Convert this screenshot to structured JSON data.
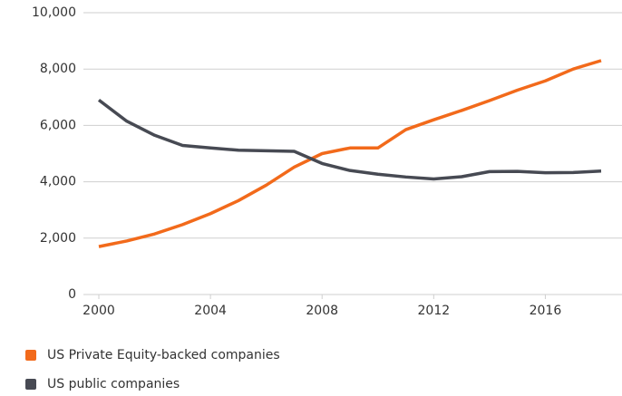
{
  "chart_data": {
    "type": "line",
    "x": [
      2000,
      2001,
      2002,
      2003,
      2004,
      2005,
      2006,
      2007,
      2008,
      2009,
      2010,
      2011,
      2012,
      2013,
      2014,
      2015,
      2016,
      2017,
      2018
    ],
    "series": [
      {
        "name": "US Private Equity-backed companies",
        "color": "#f26a1b",
        "values": [
          1700,
          1900,
          2150,
          2480,
          2870,
          3330,
          3880,
          4520,
          5000,
          5200,
          5200,
          5850,
          6200,
          6530,
          6880,
          7250,
          7580,
          8000,
          8300
        ]
      },
      {
        "name": "US public companies",
        "color": "#474a53",
        "values": [
          6900,
          6150,
          5650,
          5290,
          5200,
          5120,
          5100,
          5080,
          4650,
          4400,
          4270,
          4170,
          4100,
          4180,
          4360,
          4370,
          4320,
          4330,
          4380
        ]
      }
    ],
    "xlim": [
      2000,
      2018
    ],
    "xticks": [
      2000,
      2004,
      2008,
      2012,
      2016
    ],
    "ylim": [
      0,
      10000
    ],
    "yticks": [
      0,
      {
        "value": 2000,
        "label": "2,000"
      },
      {
        "value": 4000,
        "label": "4,000"
      },
      {
        "value": 6000,
        "label": "6,000"
      },
      {
        "value": 8000,
        "label": "8,000"
      },
      {
        "value": 10000,
        "label": "10,000"
      }
    ],
    "grid": true
  }
}
